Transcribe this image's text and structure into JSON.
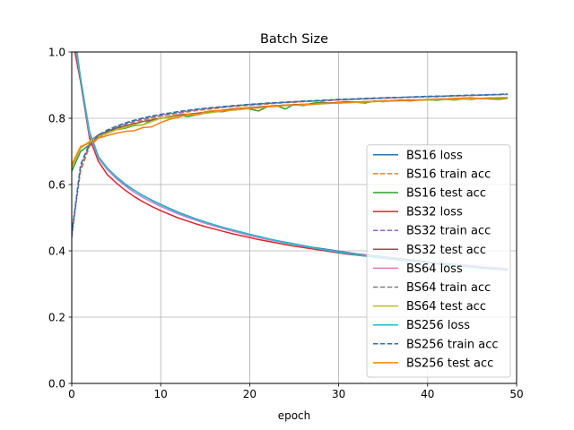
{
  "chart_data": {
    "type": "line",
    "title": "Batch Size",
    "xlabel": "epoch",
    "ylabel": "",
    "xlim": [
      0,
      50
    ],
    "ylim": [
      0,
      1.0
    ],
    "xticks": [
      0,
      10,
      20,
      30,
      40,
      50
    ],
    "yticks": [
      0.0,
      0.2,
      0.4,
      0.6,
      0.8,
      1.0
    ],
    "xtick_labels": [
      "0",
      "10",
      "20",
      "30",
      "40",
      "50"
    ],
    "ytick_labels": [
      "0.0",
      "0.2",
      "0.4",
      "0.6",
      "0.8",
      "1.0"
    ],
    "grid": true,
    "legend_position": "lower-right",
    "x": [
      0,
      1,
      2,
      3,
      4,
      5,
      6,
      7,
      8,
      9,
      10,
      11,
      12,
      13,
      14,
      15,
      16,
      17,
      18,
      19,
      20,
      21,
      22,
      23,
      24,
      25,
      26,
      27,
      28,
      29,
      30,
      31,
      32,
      33,
      34,
      35,
      36,
      37,
      38,
      39,
      40,
      41,
      42,
      43,
      44,
      45,
      46,
      47,
      48,
      49
    ],
    "series": [
      {
        "name": "BS16 loss",
        "color": "#1f77b4",
        "dash": "solid",
        "values": [
          1.1,
          0.91,
          0.75,
          0.68,
          0.645,
          0.62,
          0.6,
          0.583,
          0.567,
          0.553,
          0.54,
          0.528,
          0.516,
          0.506,
          0.496,
          0.487,
          0.478,
          0.47,
          0.463,
          0.456,
          0.449,
          0.443,
          0.437,
          0.431,
          0.426,
          0.421,
          0.416,
          0.411,
          0.407,
          0.403,
          0.399,
          0.395,
          0.391,
          0.388,
          0.385,
          0.382,
          0.379,
          0.376,
          0.373,
          0.37,
          0.367,
          0.364,
          0.362,
          0.359,
          0.357,
          0.355,
          0.352,
          0.35,
          0.348,
          0.346
        ]
      },
      {
        "name": "BS16 train acc",
        "color": "#ff7f0e",
        "dash": "dashed",
        "values": [
          0.46,
          0.64,
          0.715,
          0.74,
          0.755,
          0.767,
          0.777,
          0.786,
          0.793,
          0.8,
          0.806,
          0.811,
          0.815,
          0.819,
          0.823,
          0.826,
          0.829,
          0.832,
          0.835,
          0.837,
          0.839,
          0.841,
          0.843,
          0.845,
          0.847,
          0.848,
          0.85,
          0.851,
          0.852,
          0.853,
          0.855,
          0.856,
          0.857,
          0.858,
          0.859,
          0.86,
          0.861,
          0.862,
          0.863,
          0.864,
          0.865,
          0.865,
          0.866,
          0.867,
          0.868,
          0.869,
          0.869,
          0.87,
          0.871,
          0.872
        ]
      },
      {
        "name": "BS16 test acc",
        "color": "#2ca02c",
        "dash": "solid",
        "values": [
          0.64,
          0.7,
          0.72,
          0.745,
          0.755,
          0.765,
          0.77,
          0.778,
          0.78,
          0.795,
          0.8,
          0.802,
          0.81,
          0.805,
          0.81,
          0.815,
          0.82,
          0.82,
          0.825,
          0.83,
          0.828,
          0.822,
          0.835,
          0.838,
          0.828,
          0.842,
          0.838,
          0.845,
          0.848,
          0.846,
          0.848,
          0.85,
          0.848,
          0.846,
          0.852,
          0.85,
          0.853,
          0.855,
          0.852,
          0.855,
          0.856,
          0.854,
          0.857,
          0.855,
          0.858,
          0.857,
          0.86,
          0.858,
          0.857,
          0.86
        ]
      },
      {
        "name": "BS32 loss",
        "color": "#d62728",
        "dash": "solid",
        "values": [
          1.05,
          0.91,
          0.74,
          0.67,
          0.63,
          0.605,
          0.583,
          0.564,
          0.548,
          0.534,
          0.521,
          0.51,
          0.499,
          0.49,
          0.481,
          0.473,
          0.466,
          0.459,
          0.452,
          0.446,
          0.44,
          0.434,
          0.429,
          0.424,
          0.419,
          0.414,
          0.41,
          0.406,
          0.402,
          0.398,
          0.394,
          0.39,
          0.387,
          0.384,
          0.381,
          0.378,
          0.375,
          0.372,
          0.37,
          0.367,
          0.364,
          0.362,
          0.359,
          0.357,
          0.355,
          0.353,
          0.351,
          0.349,
          0.347,
          0.345
        ]
      },
      {
        "name": "BS32 train acc",
        "color": "#9467bd",
        "dash": "dashed",
        "values": [
          0.44,
          0.65,
          0.72,
          0.745,
          0.76,
          0.772,
          0.782,
          0.79,
          0.797,
          0.803,
          0.808,
          0.813,
          0.817,
          0.821,
          0.825,
          0.828,
          0.831,
          0.834,
          0.836,
          0.839,
          0.841,
          0.843,
          0.845,
          0.846,
          0.848,
          0.849,
          0.851,
          0.852,
          0.853,
          0.855,
          0.856,
          0.857,
          0.858,
          0.859,
          0.86,
          0.861,
          0.862,
          0.863,
          0.864,
          0.864,
          0.865,
          0.866,
          0.867,
          0.868,
          0.868,
          0.869,
          0.87,
          0.871,
          0.871,
          0.872
        ]
      },
      {
        "name": "BS32 test acc",
        "color": "#8c564b",
        "dash": "solid",
        "values": [
          0.66,
          0.71,
          0.73,
          0.75,
          0.76,
          0.77,
          0.777,
          0.783,
          0.79,
          0.795,
          0.8,
          0.805,
          0.81,
          0.812,
          0.815,
          0.818,
          0.822,
          0.824,
          0.828,
          0.83,
          0.832,
          0.834,
          0.836,
          0.838,
          0.84,
          0.841,
          0.842,
          0.843,
          0.845,
          0.846,
          0.847,
          0.848,
          0.849,
          0.85,
          0.851,
          0.852,
          0.853,
          0.854,
          0.855,
          0.855,
          0.856,
          0.857,
          0.858,
          0.858,
          0.859,
          0.86,
          0.86,
          0.861,
          0.861,
          0.862
        ]
      },
      {
        "name": "BS64 loss",
        "color": "#e377c2",
        "dash": "solid",
        "values": [
          1.08,
          0.92,
          0.75,
          0.68,
          0.645,
          0.618,
          0.596,
          0.577,
          0.561,
          0.547,
          0.534,
          0.522,
          0.511,
          0.501,
          0.492,
          0.483,
          0.475,
          0.467,
          0.46,
          0.453,
          0.446,
          0.44,
          0.434,
          0.429,
          0.424,
          0.419,
          0.414,
          0.409,
          0.405,
          0.401,
          0.397,
          0.393,
          0.389,
          0.386,
          0.383,
          0.38,
          0.377,
          0.374,
          0.371,
          0.368,
          0.366,
          0.363,
          0.361,
          0.358,
          0.356,
          0.354,
          0.352,
          0.35,
          0.348,
          0.346
        ]
      },
      {
        "name": "BS64 train acc",
        "color": "#7f7f7f",
        "dash": "dashed",
        "values": [
          0.45,
          0.66,
          0.725,
          0.75,
          0.765,
          0.776,
          0.786,
          0.794,
          0.801,
          0.807,
          0.812,
          0.816,
          0.82,
          0.824,
          0.827,
          0.83,
          0.833,
          0.835,
          0.838,
          0.84,
          0.842,
          0.844,
          0.846,
          0.847,
          0.849,
          0.85,
          0.852,
          0.853,
          0.854,
          0.855,
          0.857,
          0.858,
          0.859,
          0.86,
          0.861,
          0.862,
          0.863,
          0.863,
          0.864,
          0.865,
          0.866,
          0.867,
          0.867,
          0.868,
          0.869,
          0.87,
          0.87,
          0.871,
          0.872,
          0.873
        ]
      },
      {
        "name": "BS64 test acc",
        "color": "#bcbd22",
        "dash": "solid",
        "values": [
          0.65,
          0.71,
          0.73,
          0.745,
          0.755,
          0.765,
          0.772,
          0.78,
          0.78,
          0.79,
          0.8,
          0.803,
          0.806,
          0.81,
          0.812,
          0.815,
          0.818,
          0.822,
          0.824,
          0.826,
          0.83,
          0.832,
          0.834,
          0.836,
          0.838,
          0.84,
          0.841,
          0.842,
          0.843,
          0.845,
          0.846,
          0.847,
          0.848,
          0.849,
          0.85,
          0.851,
          0.852,
          0.853,
          0.853,
          0.854,
          0.855,
          0.856,
          0.857,
          0.857,
          0.858,
          0.859,
          0.859,
          0.86,
          0.86,
          0.861
        ]
      },
      {
        "name": "BS256 loss",
        "color": "#17becf",
        "dash": "solid",
        "values": [
          1.12,
          0.92,
          0.76,
          0.685,
          0.65,
          0.624,
          0.602,
          0.583,
          0.567,
          0.552,
          0.539,
          0.527,
          0.515,
          0.505,
          0.496,
          0.487,
          0.479,
          0.471,
          0.464,
          0.457,
          0.45,
          0.444,
          0.437,
          0.431,
          0.425,
          0.42,
          0.415,
          0.41,
          0.405,
          0.4,
          0.396,
          0.392,
          0.388,
          0.384,
          0.381,
          0.378,
          0.375,
          0.372,
          0.369,
          0.366,
          0.363,
          0.36,
          0.358,
          0.355,
          0.353,
          0.351,
          0.348,
          0.346,
          0.344,
          0.342
        ]
      },
      {
        "name": "BS256 train acc",
        "color": "#1f77b4",
        "dash": "dashed",
        "values": [
          0.45,
          0.66,
          0.72,
          0.748,
          0.763,
          0.775,
          0.785,
          0.793,
          0.8,
          0.806,
          0.811,
          0.815,
          0.82,
          0.823,
          0.827,
          0.83,
          0.832,
          0.835,
          0.837,
          0.839,
          0.842,
          0.843,
          0.845,
          0.847,
          0.848,
          0.85,
          0.851,
          0.852,
          0.854,
          0.855,
          0.856,
          0.857,
          0.858,
          0.859,
          0.86,
          0.861,
          0.862,
          0.863,
          0.864,
          0.865,
          0.866,
          0.866,
          0.867,
          0.868,
          0.869,
          0.87,
          0.87,
          0.871,
          0.872,
          0.873
        ]
      },
      {
        "name": "BS256 test acc",
        "color": "#ff7f0e",
        "dash": "solid",
        "values": [
          0.66,
          0.715,
          0.725,
          0.74,
          0.748,
          0.755,
          0.76,
          0.762,
          0.772,
          0.774,
          0.787,
          0.797,
          0.803,
          0.812,
          0.809,
          0.82,
          0.823,
          0.822,
          0.826,
          0.829,
          0.831,
          0.831,
          0.835,
          0.836,
          0.84,
          0.84,
          0.84,
          0.842,
          0.845,
          0.845,
          0.846,
          0.847,
          0.849,
          0.85,
          0.851,
          0.853,
          0.852,
          0.853,
          0.853,
          0.855,
          0.857,
          0.858,
          0.858,
          0.86,
          0.861,
          0.862,
          0.859,
          0.861,
          0.862,
          0.862
        ]
      }
    ]
  }
}
